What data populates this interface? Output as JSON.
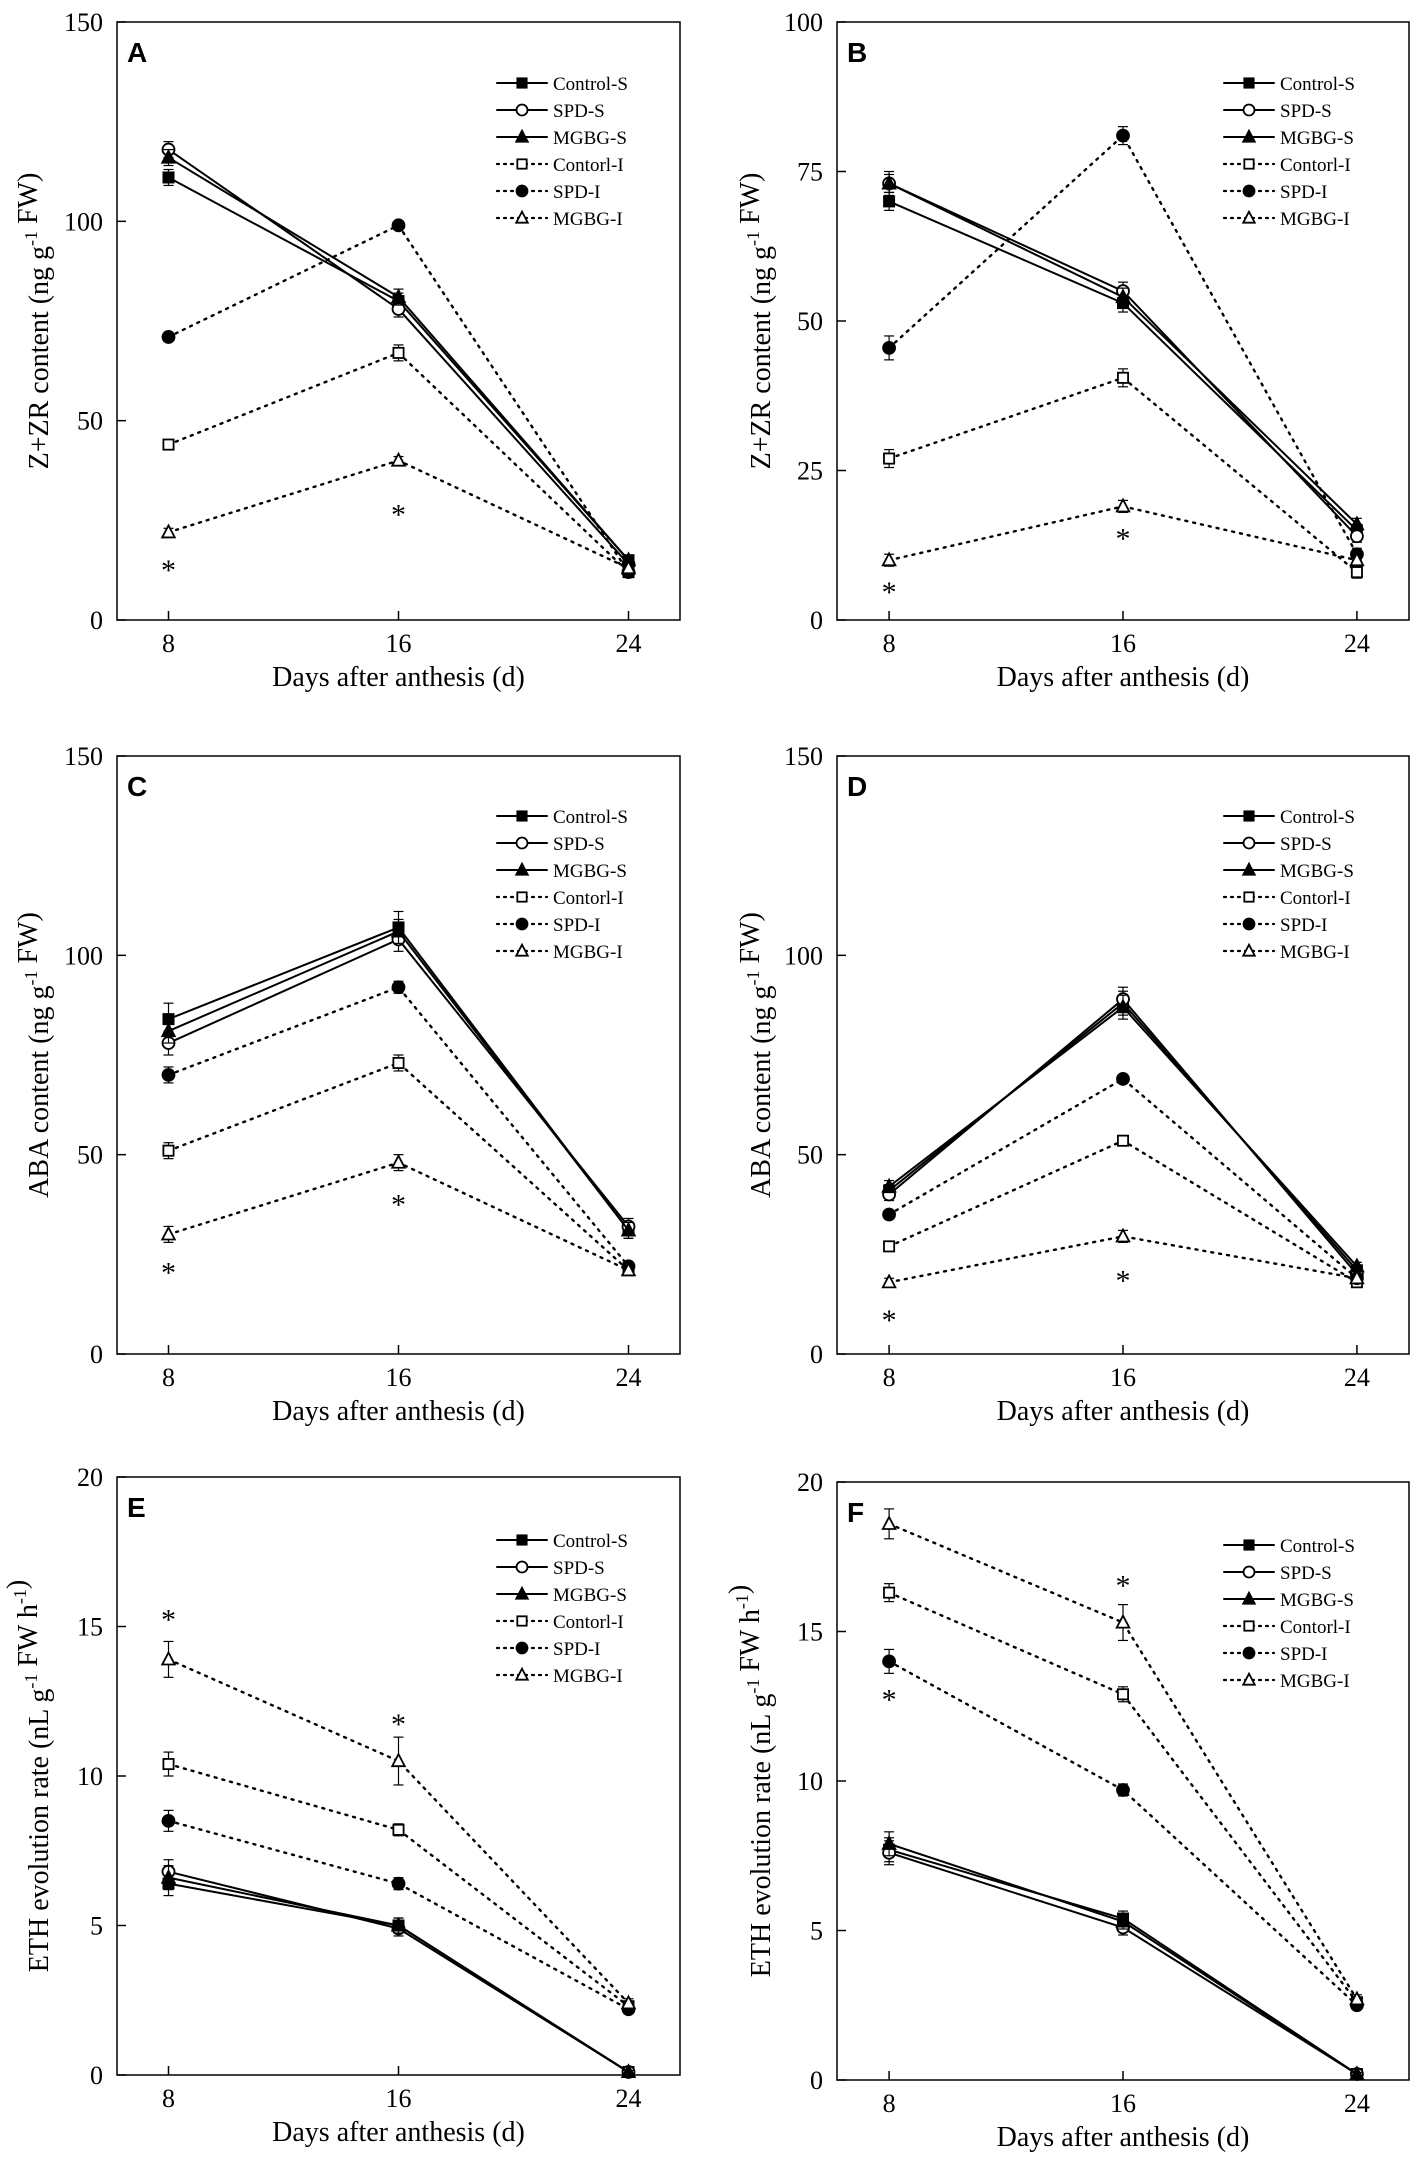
{
  "chart_data": [
    {
      "type": "line",
      "panel": "A",
      "xlabel": "Days after anthesis (d)",
      "ylabel": "Z+ZR content (ng g⁻¹ FW)",
      "ylim": [
        0,
        150
      ],
      "yticks": [
        0,
        50,
        100,
        150
      ],
      "x": [
        8,
        16,
        24
      ],
      "series": [
        {
          "name": "Control-S",
          "values": [
            111,
            80,
            15
          ],
          "errors": [
            2,
            2,
            1
          ]
        },
        {
          "name": "SPD-S",
          "values": [
            118,
            78,
            14
          ],
          "errors": [
            2,
            2,
            1
          ]
        },
        {
          "name": "MGBG-S",
          "values": [
            116,
            81,
            15
          ],
          "errors": [
            2,
            2,
            1
          ]
        },
        {
          "name": "Contorl-I",
          "values": [
            44,
            67,
            12
          ],
          "errors": [
            1,
            2,
            1
          ]
        },
        {
          "name": "SPD-I",
          "values": [
            71,
            99,
            12
          ],
          "errors": [
            1,
            1,
            1
          ]
        },
        {
          "name": "MGBG-I",
          "values": [
            22,
            40,
            13
          ],
          "errors": [
            1,
            1,
            1
          ]
        }
      ],
      "annotations": [
        {
          "x": 8,
          "y": 13,
          "text": "*"
        },
        {
          "x": 16,
          "y": 27,
          "text": "*"
        }
      ]
    },
    {
      "type": "line",
      "panel": "B",
      "xlabel": "Days after anthesis (d)",
      "ylabel": "Z+ZR content (ng g⁻¹ FW)",
      "ylim": [
        0,
        100
      ],
      "yticks": [
        0,
        25,
        50,
        75,
        100
      ],
      "x": [
        8,
        16,
        24
      ],
      "series": [
        {
          "name": "Control-S",
          "values": [
            70,
            53,
            15
          ],
          "errors": [
            1.5,
            1.5,
            1
          ]
        },
        {
          "name": "SPD-S",
          "values": [
            73,
            55,
            14
          ],
          "errors": [
            1.5,
            1.5,
            1
          ]
        },
        {
          "name": "MGBG-S",
          "values": [
            73,
            54,
            16
          ],
          "errors": [
            2,
            1.5,
            1
          ]
        },
        {
          "name": "Contorl-I",
          "values": [
            27,
            40.5,
            8
          ],
          "errors": [
            1.5,
            1.5,
            1
          ]
        },
        {
          "name": "SPD-I",
          "values": [
            45.5,
            81,
            11
          ],
          "errors": [
            2,
            1.5,
            1
          ]
        },
        {
          "name": "MGBG-I",
          "values": [
            10,
            19,
            10
          ],
          "errors": [
            1,
            1,
            1
          ]
        }
      ],
      "annotations": [
        {
          "x": 8,
          "y": 5,
          "text": "*"
        },
        {
          "x": 16,
          "y": 14,
          "text": "*"
        }
      ]
    },
    {
      "type": "line",
      "panel": "C",
      "xlabel": "Days after anthesis (d)",
      "ylabel": "ABA content (ng g⁻¹ FW)",
      "ylim": [
        0,
        150
      ],
      "yticks": [
        0,
        50,
        100,
        150
      ],
      "x": [
        8,
        16,
        24
      ],
      "series": [
        {
          "name": "Control-S",
          "values": [
            84,
            107,
            31
          ],
          "errors": [
            4,
            4,
            2
          ]
        },
        {
          "name": "SPD-S",
          "values": [
            78,
            104,
            32
          ],
          "errors": [
            3,
            3,
            2
          ]
        },
        {
          "name": "MGBG-S",
          "values": [
            81,
            106,
            31
          ],
          "errors": [
            3,
            3,
            2
          ]
        },
        {
          "name": "Contorl-I",
          "values": [
            51,
            73,
            21
          ],
          "errors": [
            2,
            2,
            1
          ]
        },
        {
          "name": "SPD-I",
          "values": [
            70,
            92,
            22
          ],
          "errors": [
            2,
            1.5,
            1
          ]
        },
        {
          "name": "MGBG-I",
          "values": [
            30,
            48,
            21
          ],
          "errors": [
            2,
            2,
            1
          ]
        }
      ],
      "annotations": [
        {
          "x": 8,
          "y": 21,
          "text": "*"
        },
        {
          "x": 16,
          "y": 38,
          "text": "*"
        }
      ]
    },
    {
      "type": "line",
      "panel": "D",
      "xlabel": "Days after anthesis (d)",
      "ylabel": "ABA content (ng g⁻¹ FW)",
      "ylim": [
        0,
        150
      ],
      "yticks": [
        0,
        50,
        100,
        150
      ],
      "x": [
        8,
        16,
        24
      ],
      "series": [
        {
          "name": "Control-S",
          "values": [
            41,
            88,
            21
          ],
          "errors": [
            1.5,
            3,
            1
          ]
        },
        {
          "name": "SPD-S",
          "values": [
            40,
            89,
            20
          ],
          "errors": [
            1.5,
            3,
            1
          ]
        },
        {
          "name": "MGBG-S",
          "values": [
            42,
            87,
            22
          ],
          "errors": [
            1.5,
            3,
            1
          ]
        },
        {
          "name": "Contorl-I",
          "values": [
            27,
            53.5,
            18
          ],
          "errors": [
            1,
            1,
            1
          ]
        },
        {
          "name": "SPD-I",
          "values": [
            35,
            69,
            19
          ],
          "errors": [
            1,
            1,
            1
          ]
        },
        {
          "name": "MGBG-I",
          "values": [
            18,
            29.5,
            19
          ],
          "errors": [
            1,
            1.5,
            1
          ]
        }
      ],
      "annotations": [
        {
          "x": 8,
          "y": 9,
          "text": "*"
        },
        {
          "x": 16,
          "y": 19,
          "text": "*"
        }
      ]
    },
    {
      "type": "line",
      "panel": "E",
      "xlabel": "Days after anthesis (d)",
      "ylabel": "ETH evolution rate (nL g⁻¹ FW h⁻¹)",
      "ylim": [
        0,
        20
      ],
      "yticks": [
        0,
        5,
        10,
        15,
        20
      ],
      "x": [
        8,
        16,
        24
      ],
      "series": [
        {
          "name": "Control-S",
          "values": [
            6.4,
            5.0,
            0.1
          ],
          "errors": [
            0.4,
            0.25,
            0.05
          ]
        },
        {
          "name": "SPD-S",
          "values": [
            6.8,
            4.9,
            0.1
          ],
          "errors": [
            0.4,
            0.25,
            0.05
          ]
        },
        {
          "name": "MGBG-S",
          "values": [
            6.6,
            5.0,
            0.1
          ],
          "errors": [
            0.4,
            0.25,
            0.05
          ]
        },
        {
          "name": "Contorl-I",
          "values": [
            10.4,
            8.2,
            2.3
          ],
          "errors": [
            0.4,
            0.2,
            0.15
          ]
        },
        {
          "name": "SPD-I",
          "values": [
            8.5,
            6.4,
            2.2
          ],
          "errors": [
            0.35,
            0.2,
            0.1
          ]
        },
        {
          "name": "MGBG-I",
          "values": [
            13.9,
            10.5,
            2.4
          ],
          "errors": [
            0.6,
            0.8,
            0.15
          ]
        }
      ],
      "annotations": [
        {
          "x": 8,
          "y": 15.3,
          "text": "*"
        },
        {
          "x": 16,
          "y": 11.8,
          "text": "*"
        }
      ]
    },
    {
      "type": "line",
      "panel": "F",
      "xlabel": "Days after anthesis (d)",
      "ylabel": "ETH evolution rate (nL g⁻¹ FW h⁻¹)",
      "ylim": [
        0,
        20
      ],
      "yticks": [
        0,
        5,
        10,
        15,
        20
      ],
      "x": [
        8,
        16,
        24
      ],
      "series": [
        {
          "name": "Control-S",
          "values": [
            7.7,
            5.4,
            0.2
          ],
          "errors": [
            0.4,
            0.25,
            0.05
          ]
        },
        {
          "name": "SPD-S",
          "values": [
            7.6,
            5.1,
            0.2
          ],
          "errors": [
            0.4,
            0.25,
            0.05
          ]
        },
        {
          "name": "MGBG-S",
          "values": [
            7.9,
            5.3,
            0.2
          ],
          "errors": [
            0.4,
            0.25,
            0.05
          ]
        },
        {
          "name": "Contorl-I",
          "values": [
            16.3,
            12.9,
            2.6
          ],
          "errors": [
            0.3,
            0.25,
            0.15
          ]
        },
        {
          "name": "SPD-I",
          "values": [
            14.0,
            9.7,
            2.5
          ],
          "errors": [
            0.4,
            0.2,
            0.1
          ]
        },
        {
          "name": "MGBG-I",
          "values": [
            18.6,
            15.3,
            2.7
          ],
          "errors": [
            0.5,
            0.6,
            0.15
          ]
        }
      ],
      "annotations": [
        {
          "x": 8,
          "y": 12.8,
          "text": "*"
        },
        {
          "x": 16,
          "y": 16.6,
          "text": "*"
        }
      ]
    }
  ]
}
